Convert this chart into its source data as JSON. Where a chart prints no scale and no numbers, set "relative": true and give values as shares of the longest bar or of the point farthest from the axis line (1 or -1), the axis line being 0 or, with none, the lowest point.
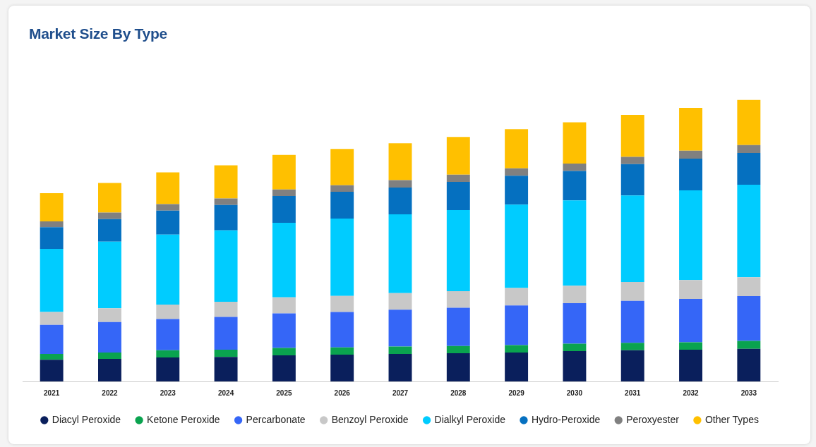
{
  "chart_data": {
    "type": "bar",
    "title": "Market Size By Type",
    "stacked": true,
    "relative": true,
    "legend": "bottom",
    "categories": [
      "2021",
      "2022",
      "2023",
      "2024",
      "2025",
      "2026",
      "2027",
      "2028",
      "2029",
      "2030",
      "2031",
      "2032",
      "2033"
    ],
    "series": [
      {
        "name": "Diacyl Peroxide",
        "color": "#0a1f5c",
        "values": [
          0.077,
          0.08,
          0.085,
          0.087,
          0.093,
          0.095,
          0.098,
          0.1,
          0.103,
          0.108,
          0.111,
          0.113,
          0.116
        ]
      },
      {
        "name": "Ketone Peroxide",
        "color": "#0aa34f",
        "values": [
          0.021,
          0.023,
          0.026,
          0.026,
          0.026,
          0.026,
          0.026,
          0.026,
          0.026,
          0.026,
          0.026,
          0.026,
          0.028
        ]
      },
      {
        "name": "Percarbonate",
        "color": "#3566f7",
        "values": [
          0.103,
          0.108,
          0.111,
          0.116,
          0.123,
          0.126,
          0.131,
          0.136,
          0.141,
          0.144,
          0.149,
          0.154,
          0.159
        ]
      },
      {
        "name": "Benzoyl Peroxide",
        "color": "#c8c8c8",
        "values": [
          0.046,
          0.049,
          0.051,
          0.054,
          0.057,
          0.057,
          0.059,
          0.059,
          0.062,
          0.062,
          0.067,
          0.067,
          0.067
        ]
      },
      {
        "name": "Dialkyl Peroxide",
        "color": "#00ccff",
        "values": [
          0.224,
          0.237,
          0.249,
          0.254,
          0.265,
          0.275,
          0.28,
          0.288,
          0.296,
          0.303,
          0.308,
          0.319,
          0.329
        ]
      },
      {
        "name": "Hydro-Peroxide",
        "color": "#0570c0",
        "values": [
          0.077,
          0.08,
          0.085,
          0.09,
          0.095,
          0.095,
          0.095,
          0.1,
          0.103,
          0.105,
          0.111,
          0.113,
          0.113
        ]
      },
      {
        "name": "Peroxyester",
        "color": "#808080",
        "values": [
          0.021,
          0.023,
          0.023,
          0.023,
          0.023,
          0.023,
          0.026,
          0.026,
          0.026,
          0.026,
          0.026,
          0.028,
          0.028
        ]
      },
      {
        "name": "Other Types",
        "color": "#ffc000",
        "values": [
          0.1,
          0.105,
          0.113,
          0.118,
          0.123,
          0.129,
          0.131,
          0.134,
          0.139,
          0.147,
          0.149,
          0.152,
          0.16
        ]
      }
    ]
  }
}
